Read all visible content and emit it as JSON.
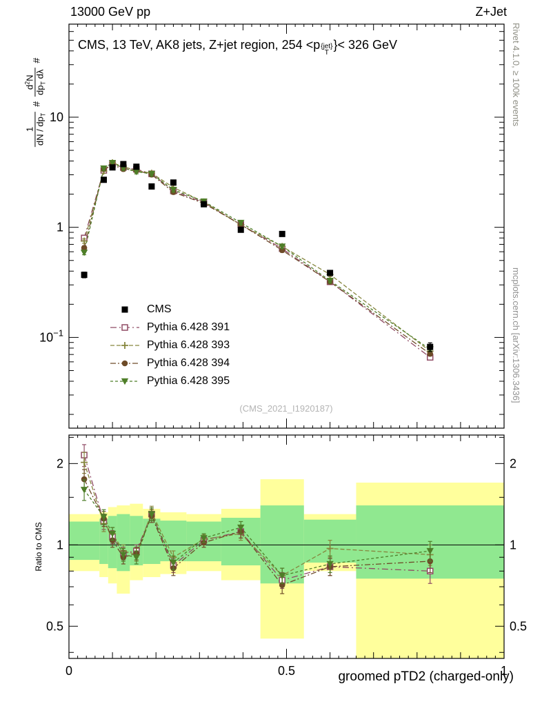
{
  "page": {
    "header_left": "13000 GeV pp",
    "header_right": "Z+Jet",
    "watermark": "(CMS_2021_I1920187)",
    "rivet_note": "Rivet 4.1.0, ≥ 100k events",
    "mcplots_note": "mcplots.cern.ch [arXiv:1306.3436]"
  },
  "title_parts": {
    "pre": "CMS, 13 TeV, AK8 jets, Z+jet region, 254 <p",
    "sup": "{jet}",
    "sub": "T",
    "post": "}< 326 GeV"
  },
  "ylabel_parts": {
    "num1": "1",
    "den1a": "dN / dp",
    "den1sub": "T",
    "hash": "#",
    "num2a": "d",
    "num2sup": "2",
    "num2b": "N",
    "den2a": "dp",
    "den2sub": "T",
    "den2b": " dλ"
  },
  "chart_data": {
    "type": "line",
    "title": "CMS, 13 TeV, AK8 jets, Z+jet region, 254 < pT{jet} < 326 GeV",
    "xlabel": "groomed pTD2 (charged-only)",
    "ylabel": "# 1/(dN/dpT) # d2N/(dpT dlambda)",
    "ratio_label": "Ratio to CMS",
    "xlim": [
      0,
      1
    ],
    "ylim_main": [
      0.015,
      70
    ],
    "ylim_ratio": [
      0.38,
      2.55
    ],
    "x_ticks": {
      "major": [
        0,
        0.5,
        1
      ],
      "labels": [
        "0",
        "0.5",
        "1"
      ]
    },
    "y_ticks_main": [
      0.1,
      1,
      10
    ],
    "y_ticks_ratio": {
      "major": [
        0.5,
        1,
        2
      ],
      "labels": [
        "0.5",
        "1",
        "2"
      ],
      "minor": [
        0.4,
        0.6,
        0.7,
        0.8,
        0.9,
        1.5,
        2.5
      ]
    },
    "ratio_ref": 1,
    "x": [
      0.035,
      0.08,
      0.1,
      0.125,
      0.155,
      0.19,
      0.24,
      0.31,
      0.395,
      0.49,
      0.6,
      0.83
    ],
    "bin_edges": [
      0,
      0.07,
      0.09,
      0.11,
      0.14,
      0.17,
      0.21,
      0.27,
      0.35,
      0.44,
      0.54,
      0.66,
      1.0
    ],
    "series": [
      {
        "name": "CMS",
        "marker": "filled-square",
        "color": "#000000",
        "values": [
          0.37,
          2.7,
          3.5,
          3.75,
          3.55,
          2.35,
          2.55,
          1.62,
          0.95,
          0.87,
          0.385,
          0.082
        ],
        "rel_err": [
          0.06,
          0.04,
          0.03,
          0.03,
          0.03,
          0.03,
          0.03,
          0.03,
          0.035,
          0.04,
          0.05,
          0.09
        ]
      },
      {
        "name": "Pythia 6.428 391",
        "marker": "open-square",
        "color": "#8f4a64",
        "dash": [
          9,
          4,
          2,
          4
        ],
        "values": [
          0.8,
          3.29,
          3.75,
          3.49,
          3.37,
          3.06,
          2.14,
          1.68,
          1.06,
          0.64,
          0.32,
          0.066
        ],
        "ratio": [
          2.15,
          1.22,
          1.07,
          0.93,
          0.95,
          1.3,
          0.84,
          1.04,
          1.12,
          0.74,
          0.83,
          0.8
        ],
        "ratio_err": [
          0.2,
          0.08,
          0.06,
          0.05,
          0.05,
          0.07,
          0.05,
          0.04,
          0.06,
          0.05,
          0.06,
          0.08
        ]
      },
      {
        "name": "Pythia 6.428 393",
        "marker": "open-cross",
        "color": "#86863e",
        "dash": [
          6,
          3
        ],
        "values": [
          0.75,
          3.24,
          3.85,
          3.56,
          3.27,
          3.1,
          2.3,
          1.7,
          1.05,
          0.67,
          0.373,
          0.075
        ],
        "ratio": [
          2.02,
          1.2,
          1.1,
          0.95,
          0.92,
          1.32,
          0.9,
          1.05,
          1.1,
          0.77,
          0.97,
          0.92
        ],
        "ratio_err": [
          0.18,
          0.08,
          0.06,
          0.05,
          0.05,
          0.07,
          0.05,
          0.04,
          0.06,
          0.05,
          0.07,
          0.08
        ]
      },
      {
        "name": "Pythia 6.428 394",
        "marker": "filled-circle",
        "color": "#6d4b28",
        "dash": [
          8,
          3,
          2,
          3
        ],
        "values": [
          0.65,
          3.38,
          3.68,
          3.38,
          3.3,
          3.01,
          2.09,
          1.65,
          1.06,
          0.62,
          0.32,
          0.071
        ],
        "ratio": [
          1.75,
          1.25,
          1.04,
          0.9,
          0.93,
          1.28,
          0.82,
          1.02,
          1.12,
          0.71,
          0.83,
          0.87
        ],
        "ratio_err": [
          0.15,
          0.08,
          0.06,
          0.05,
          0.05,
          0.07,
          0.05,
          0.04,
          0.06,
          0.05,
          0.06,
          0.08
        ]
      },
      {
        "name": "Pythia 6.428 395",
        "marker": "filled-triangle-down",
        "color": "#4e7e28",
        "dash": [
          4,
          3
        ],
        "values": [
          0.59,
          3.43,
          3.85,
          3.45,
          3.2,
          3.06,
          2.19,
          1.72,
          1.1,
          0.67,
          0.327,
          0.078
        ],
        "ratio": [
          1.6,
          1.27,
          1.1,
          0.92,
          0.9,
          1.3,
          0.86,
          1.06,
          1.16,
          0.77,
          0.85,
          0.95
        ],
        "ratio_err": [
          0.14,
          0.08,
          0.06,
          0.05,
          0.05,
          0.07,
          0.05,
          0.04,
          0.06,
          0.05,
          0.06,
          0.08
        ]
      }
    ],
    "bands": {
      "colors": {
        "yellow": "#ffff9c",
        "green": "#90e890"
      },
      "yellow": [
        [
          0.8,
          1.3
        ],
        [
          0.76,
          1.32
        ],
        [
          0.72,
          1.38
        ],
        [
          0.66,
          1.4
        ],
        [
          0.74,
          1.42
        ],
        [
          0.76,
          1.36
        ],
        [
          0.78,
          1.32
        ],
        [
          0.8,
          1.3
        ],
        [
          0.74,
          1.36
        ],
        [
          0.45,
          1.75
        ],
        [
          0.8,
          1.3
        ],
        [
          0.35,
          1.7
        ]
      ],
      "green": [
        [
          0.88,
          1.22
        ],
        [
          0.85,
          1.25
        ],
        [
          0.82,
          1.28
        ],
        [
          0.8,
          1.3
        ],
        [
          0.84,
          1.28
        ],
        [
          0.85,
          1.25
        ],
        [
          0.87,
          1.23
        ],
        [
          0.87,
          1.22
        ],
        [
          0.84,
          1.26
        ],
        [
          0.72,
          1.4
        ],
        [
          0.86,
          1.24
        ],
        [
          0.75,
          1.4
        ]
      ]
    }
  }
}
